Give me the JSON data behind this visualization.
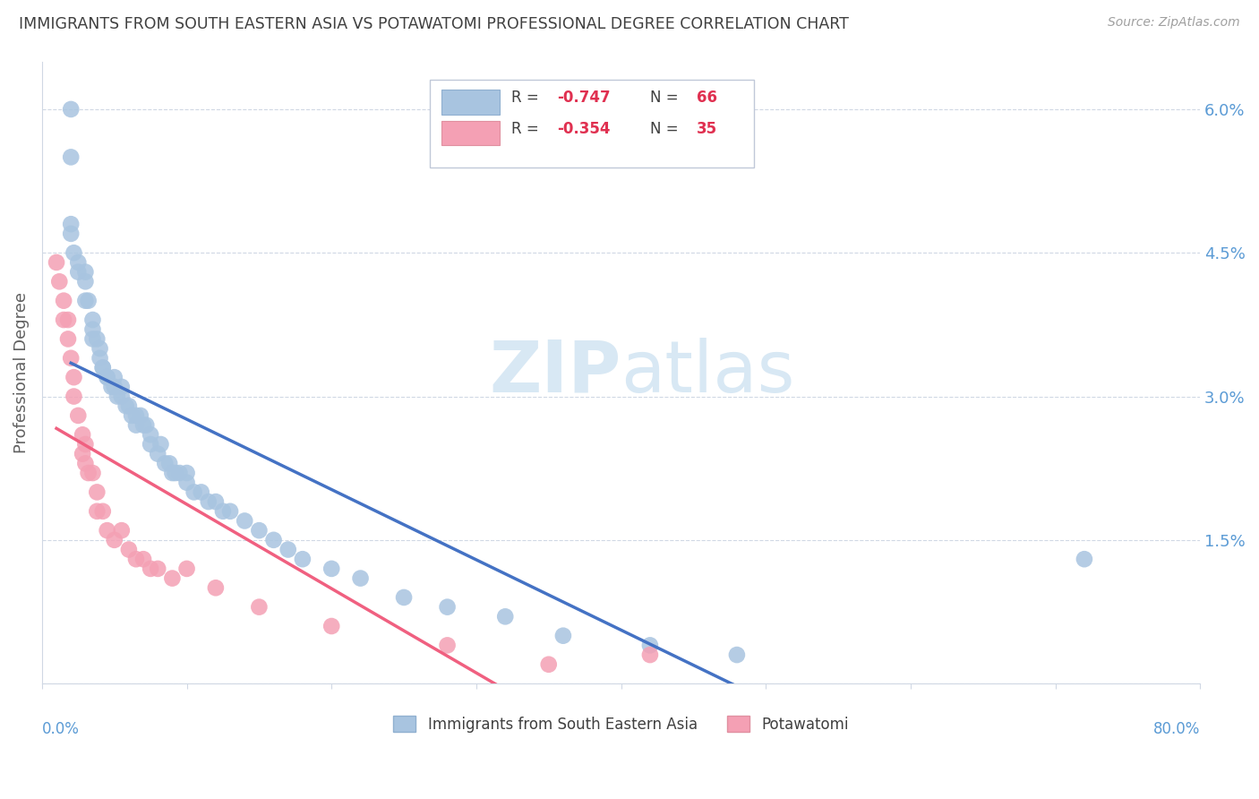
{
  "title": "IMMIGRANTS FROM SOUTH EASTERN ASIA VS POTAWATOMI PROFESSIONAL DEGREE CORRELATION CHART",
  "source": "Source: ZipAtlas.com",
  "ylabel": "Professional Degree",
  "legend_blue_r": "-0.747",
  "legend_blue_n": "66",
  "legend_pink_r": "-0.354",
  "legend_pink_n": "35",
  "legend_label_blue": "Immigrants from South Eastern Asia",
  "legend_label_pink": "Potawatomi",
  "blue_scatter_color": "#a8c4e0",
  "pink_scatter_color": "#f4a0b4",
  "blue_line_color": "#4472c4",
  "pink_line_color": "#f06080",
  "watermark_color": "#d8e8f4",
  "grid_color": "#d0d8e4",
  "axis_label_color": "#5b9bd5",
  "title_color": "#404040",
  "source_color": "#a0a0a0",
  "legend_text_color": "#404040",
  "legend_value_color": "#e03050",
  "blue_scatter_x": [
    0.02,
    0.02,
    0.02,
    0.022,
    0.025,
    0.025,
    0.03,
    0.03,
    0.03,
    0.032,
    0.035,
    0.035,
    0.035,
    0.038,
    0.04,
    0.04,
    0.042,
    0.042,
    0.045,
    0.045,
    0.048,
    0.05,
    0.05,
    0.052,
    0.055,
    0.055,
    0.058,
    0.06,
    0.062,
    0.065,
    0.065,
    0.068,
    0.07,
    0.072,
    0.075,
    0.075,
    0.08,
    0.082,
    0.085,
    0.088,
    0.09,
    0.092,
    0.095,
    0.1,
    0.1,
    0.105,
    0.11,
    0.115,
    0.12,
    0.125,
    0.13,
    0.14,
    0.15,
    0.16,
    0.17,
    0.18,
    0.2,
    0.22,
    0.25,
    0.28,
    0.32,
    0.36,
    0.42,
    0.48,
    0.72,
    0.02
  ],
  "blue_scatter_y": [
    0.055,
    0.048,
    0.047,
    0.045,
    0.044,
    0.043,
    0.043,
    0.042,
    0.04,
    0.04,
    0.038,
    0.037,
    0.036,
    0.036,
    0.035,
    0.034,
    0.033,
    0.033,
    0.032,
    0.032,
    0.031,
    0.032,
    0.031,
    0.03,
    0.031,
    0.03,
    0.029,
    0.029,
    0.028,
    0.028,
    0.027,
    0.028,
    0.027,
    0.027,
    0.026,
    0.025,
    0.024,
    0.025,
    0.023,
    0.023,
    0.022,
    0.022,
    0.022,
    0.022,
    0.021,
    0.02,
    0.02,
    0.019,
    0.019,
    0.018,
    0.018,
    0.017,
    0.016,
    0.015,
    0.014,
    0.013,
    0.012,
    0.011,
    0.009,
    0.008,
    0.007,
    0.005,
    0.004,
    0.003,
    0.013,
    0.06
  ],
  "pink_scatter_x": [
    0.01,
    0.012,
    0.015,
    0.015,
    0.018,
    0.018,
    0.02,
    0.022,
    0.022,
    0.025,
    0.028,
    0.028,
    0.03,
    0.03,
    0.032,
    0.035,
    0.038,
    0.038,
    0.042,
    0.045,
    0.05,
    0.055,
    0.06,
    0.065,
    0.07,
    0.075,
    0.08,
    0.09,
    0.1,
    0.12,
    0.15,
    0.2,
    0.28,
    0.35,
    0.42
  ],
  "pink_scatter_y": [
    0.044,
    0.042,
    0.04,
    0.038,
    0.038,
    0.036,
    0.034,
    0.032,
    0.03,
    0.028,
    0.026,
    0.024,
    0.025,
    0.023,
    0.022,
    0.022,
    0.02,
    0.018,
    0.018,
    0.016,
    0.015,
    0.016,
    0.014,
    0.013,
    0.013,
    0.012,
    0.012,
    0.011,
    0.012,
    0.01,
    0.008,
    0.006,
    0.004,
    0.002,
    0.003
  ],
  "xlim": [
    0.0,
    0.8
  ],
  "ylim": [
    0.0,
    0.065
  ],
  "yticks": [
    0.0,
    0.015,
    0.03,
    0.045,
    0.06
  ],
  "yticklabels": [
    "",
    "1.5%",
    "3.0%",
    "4.5%",
    "6.0%"
  ],
  "xtick_positions": [
    0.0,
    0.1,
    0.2,
    0.3,
    0.4,
    0.5,
    0.6,
    0.7,
    0.8
  ]
}
